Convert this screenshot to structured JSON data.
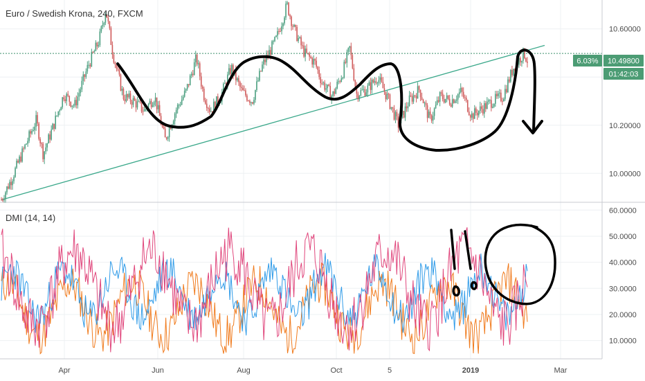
{
  "colors": {
    "up": "#4a9e7f",
    "down": "#cf5a5a",
    "trendline": "#3aa88a",
    "priceline": "#3b8f6a",
    "badge": "#4c9c74",
    "plus_di": "#2f9be8",
    "minus_di": "#f07a1c",
    "adx": "#e0457b",
    "drawing": "#000000",
    "grid": "#eef0f3",
    "axis_border": "#c8cbd1"
  },
  "chart_data": [
    {
      "type": "candlestick",
      "title": "Euro / Swedish Krona, 240, FXCM",
      "y_ticks": [
        "10.00000",
        "10.20000",
        "10.40000",
        "10.60000"
      ],
      "ylim": [
        9.88,
        10.72
      ],
      "last_price": "10.49800",
      "change_badge": "6.03%",
      "countdown": "01:42:03",
      "x_ticks": [
        "Apr",
        "Jun",
        "Aug",
        "Oct",
        "5",
        "2019",
        "Mar"
      ],
      "price_path": [
        [
          0,
          9.89
        ],
        [
          3,
          9.98
        ],
        [
          7,
          10.12
        ],
        [
          10,
          10.22
        ],
        [
          12,
          10.08
        ],
        [
          15,
          10.2
        ],
        [
          18,
          10.33
        ],
        [
          21,
          10.28
        ],
        [
          25,
          10.45
        ],
        [
          28,
          10.55
        ],
        [
          30,
          10.68
        ],
        [
          32,
          10.5
        ],
        [
          35,
          10.32
        ],
        [
          38,
          10.3
        ],
        [
          41,
          10.26
        ],
        [
          44,
          10.32
        ],
        [
          47,
          10.14
        ],
        [
          50,
          10.26
        ],
        [
          53,
          10.34
        ],
        [
          56,
          10.48
        ],
        [
          58,
          10.33
        ],
        [
          60,
          10.26
        ],
        [
          63,
          10.32
        ],
        [
          66,
          10.44
        ],
        [
          69,
          10.34
        ],
        [
          72,
          10.3
        ],
        [
          75,
          10.45
        ],
        [
          79,
          10.56
        ],
        [
          82,
          10.7
        ],
        [
          84,
          10.6
        ],
        [
          87,
          10.5
        ],
        [
          90,
          10.46
        ],
        [
          92,
          10.38
        ],
        [
          95,
          10.32
        ],
        [
          98,
          10.42
        ],
        [
          100,
          10.52
        ],
        [
          102,
          10.33
        ],
        [
          105,
          10.35
        ],
        [
          108,
          10.4
        ],
        [
          111,
          10.31
        ],
        [
          114,
          10.2
        ],
        [
          117,
          10.3
        ],
        [
          120,
          10.35
        ],
        [
          123,
          10.22
        ],
        [
          126,
          10.32
        ],
        [
          129,
          10.3
        ],
        [
          132,
          10.34
        ],
        [
          135,
          10.24
        ],
        [
          138,
          10.27
        ],
        [
          141,
          10.3
        ],
        [
          144,
          10.32
        ],
        [
          147,
          10.44
        ],
        [
          150,
          10.5
        ],
        [
          151,
          10.47
        ]
      ],
      "trendline": {
        "x": [
          0,
          152
        ],
        "y": [
          9.89,
          10.52
        ]
      }
    },
    {
      "type": "line",
      "title": "DMI (14, 14)",
      "y_ticks": [
        "10.0000",
        "20.0000",
        "30.0000",
        "40.0000",
        "50.0000",
        "60.0000"
      ],
      "ylim": [
        3,
        63
      ],
      "x_ticks": [
        "Apr",
        "Jun",
        "Aug",
        "Oct",
        "5",
        "2019",
        "Mar"
      ]
    }
  ]
}
